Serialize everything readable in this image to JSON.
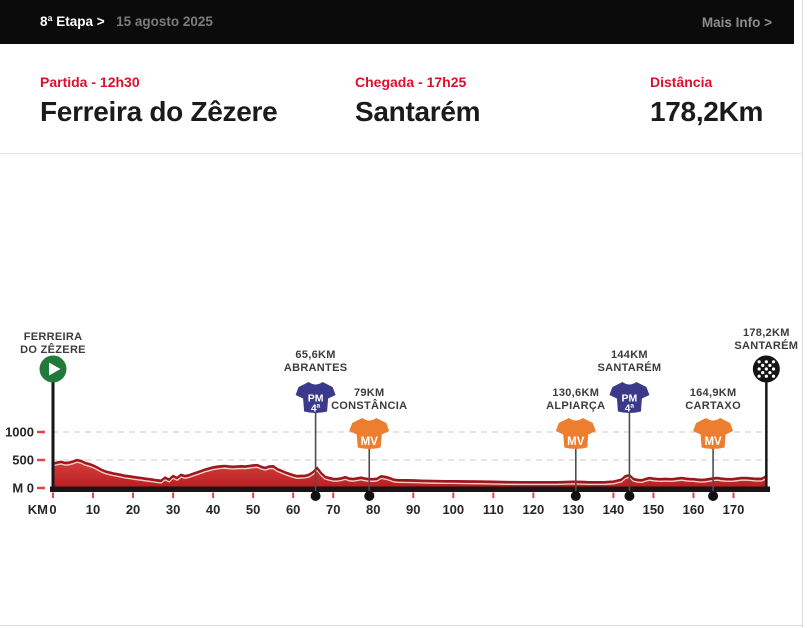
{
  "topbar": {
    "stage_label": "8ª Etapa >",
    "date": "15 agosto 2025",
    "more_info": "Mais Info >"
  },
  "header": {
    "partida": {
      "label": "Partida - 12h30",
      "city": "Ferreira do Zêzere"
    },
    "chegada": {
      "label": "Chegada - 17h25",
      "city": "Santarém"
    },
    "distancia": {
      "label": "Distância",
      "value": "178,2Km"
    }
  },
  "chart_data": {
    "type": "area",
    "xlabel": "KM",
    "ylabel": "M",
    "x_axis_prefix": "KM",
    "xlim": [
      0,
      178.2
    ],
    "ylim": [
      0,
      1250
    ],
    "distance_km": 178.2,
    "x_ticks": [
      0,
      10,
      20,
      30,
      40,
      50,
      60,
      70,
      80,
      90,
      100,
      110,
      120,
      130,
      140,
      150,
      160,
      170
    ],
    "y_ticks": [
      {
        "label": "M 0",
        "value": 0
      },
      {
        "label": "500",
        "value": 500
      },
      {
        "label": "1000",
        "value": 1000
      }
    ],
    "grid": "dashed horizontal at 500 and 1000",
    "profile": [
      [
        0,
        440
      ],
      [
        1,
        455
      ],
      [
        2,
        470
      ],
      [
        3,
        450
      ],
      [
        4,
        455
      ],
      [
        5,
        475
      ],
      [
        6,
        500
      ],
      [
        7,
        485
      ],
      [
        8,
        450
      ],
      [
        9,
        430
      ],
      [
        10,
        405
      ],
      [
        11,
        370
      ],
      [
        12,
        330
      ],
      [
        13,
        300
      ],
      [
        14,
        280
      ],
      [
        15,
        265
      ],
      [
        16,
        250
      ],
      [
        17,
        235
      ],
      [
        18,
        220
      ],
      [
        19,
        210
      ],
      [
        20,
        200
      ],
      [
        21,
        190
      ],
      [
        22,
        180
      ],
      [
        23,
        170
      ],
      [
        24,
        160
      ],
      [
        25,
        150
      ],
      [
        26,
        140
      ],
      [
        27,
        130
      ],
      [
        28,
        185
      ],
      [
        29,
        150
      ],
      [
        30,
        215
      ],
      [
        31,
        180
      ],
      [
        32,
        235
      ],
      [
        33,
        215
      ],
      [
        34,
        230
      ],
      [
        35,
        255
      ],
      [
        36,
        280
      ],
      [
        37,
        305
      ],
      [
        38,
        330
      ],
      [
        39,
        350
      ],
      [
        40,
        370
      ],
      [
        41,
        380
      ],
      [
        42,
        390
      ],
      [
        43,
        395
      ],
      [
        44,
        385
      ],
      [
        45,
        380
      ],
      [
        46,
        385
      ],
      [
        47,
        390
      ],
      [
        48,
        385
      ],
      [
        49,
        395
      ],
      [
        50,
        405
      ],
      [
        51,
        410
      ],
      [
        52,
        380
      ],
      [
        53,
        360
      ],
      [
        54,
        385
      ],
      [
        55,
        390
      ],
      [
        56,
        340
      ],
      [
        57,
        310
      ],
      [
        58,
        280
      ],
      [
        59,
        255
      ],
      [
        60,
        230
      ],
      [
        61,
        215
      ],
      [
        62,
        218
      ],
      [
        63,
        222
      ],
      [
        64,
        240
      ],
      [
        65,
        285
      ],
      [
        66,
        355
      ],
      [
        67,
        265
      ],
      [
        68,
        200
      ],
      [
        69,
        180
      ],
      [
        70,
        165
      ],
      [
        71,
        162
      ],
      [
        72,
        175
      ],
      [
        73,
        195
      ],
      [
        74,
        170
      ],
      [
        75,
        162
      ],
      [
        76,
        175
      ],
      [
        77,
        185
      ],
      [
        78,
        170
      ],
      [
        79,
        162
      ],
      [
        80,
        160
      ],
      [
        81,
        168
      ],
      [
        82,
        210
      ],
      [
        83,
        200
      ],
      [
        84,
        180
      ],
      [
        85,
        152
      ],
      [
        86,
        142
      ],
      [
        88,
        140
      ],
      [
        90,
        138
      ],
      [
        92,
        132
      ],
      [
        95,
        126
      ],
      [
        98,
        124
      ],
      [
        100,
        124
      ],
      [
        103,
        120
      ],
      [
        106,
        117
      ],
      [
        110,
        112
      ],
      [
        114,
        108
      ],
      [
        118,
        106
      ],
      [
        122,
        105
      ],
      [
        126,
        105
      ],
      [
        130,
        115
      ],
      [
        132,
        110
      ],
      [
        134,
        106
      ],
      [
        136,
        106
      ],
      [
        138,
        108
      ],
      [
        140,
        116
      ],
      [
        142,
        150
      ],
      [
        143,
        210
      ],
      [
        144,
        230
      ],
      [
        145,
        162
      ],
      [
        146,
        146
      ],
      [
        147,
        140
      ],
      [
        148,
        160
      ],
      [
        149,
        180
      ],
      [
        150,
        170
      ],
      [
        151,
        162
      ],
      [
        152,
        160
      ],
      [
        153,
        165
      ],
      [
        154,
        160
      ],
      [
        155,
        162
      ],
      [
        156,
        172
      ],
      [
        157,
        180
      ],
      [
        158,
        170
      ],
      [
        159,
        162
      ],
      [
        160,
        160
      ],
      [
        161,
        152
      ],
      [
        162,
        146
      ],
      [
        163,
        152
      ],
      [
        164,
        162
      ],
      [
        165,
        175
      ],
      [
        166,
        180
      ],
      [
        167,
        170
      ],
      [
        168,
        162
      ],
      [
        169,
        160
      ],
      [
        170,
        162
      ],
      [
        171,
        172
      ],
      [
        172,
        180
      ],
      [
        173,
        180
      ],
      [
        174,
        176
      ],
      [
        175,
        170
      ],
      [
        176,
        166
      ],
      [
        177,
        166
      ],
      [
        178,
        200
      ],
      [
        178.2,
        230
      ]
    ],
    "markers": [
      {
        "km": 0,
        "type": "start",
        "label_lines": [
          "FERREIRA",
          "DO ZÊZERE"
        ]
      },
      {
        "km": 65.6,
        "type": "pm",
        "km_label": "65,6KM",
        "name": "ABRANTES",
        "label_lines": [
          "65,6KM",
          "ABRANTES"
        ],
        "jersey_lines": [
          "PM",
          "4ª"
        ]
      },
      {
        "km": 79,
        "type": "mv",
        "km_label": "79KM",
        "name": "CONSTÂNCIA",
        "label_lines": [
          "79KM",
          "CONSTÂNCIA"
        ],
        "jersey_lines": [
          "MV"
        ]
      },
      {
        "km": 130.6,
        "type": "mv",
        "km_label": "130,6KM",
        "name": "ALPIARÇA",
        "label_lines": [
          "130,6KM",
          "ALPIARÇA"
        ],
        "jersey_lines": [
          "MV"
        ]
      },
      {
        "km": 144,
        "type": "pm",
        "km_label": "144KM",
        "name": "SANTARÉM",
        "label_lines": [
          "144KM",
          "SANTARÉM"
        ],
        "jersey_lines": [
          "PM",
          "4ª"
        ]
      },
      {
        "km": 164.9,
        "type": "mv",
        "km_label": "164,9KM",
        "name": "CARTAXO",
        "label_lines": [
          "164,9KM",
          "CARTAXO"
        ],
        "jersey_lines": [
          "MV"
        ]
      },
      {
        "km": 178.2,
        "type": "finish",
        "km_label": "178,2KM",
        "name": "SANTARÉM",
        "label_lines": [
          "178,2KM",
          "SANTARÉM"
        ]
      }
    ],
    "colors": {
      "profile_fill_top": "#d4403c",
      "profile_fill_bottom": "#b91d22",
      "profile_stroke": "#9a181d",
      "highlight": "#f6ddd2",
      "baseline": "#1c1414",
      "pm_blue": "#3b3a8a",
      "mv_orange": "#ee7e2f",
      "start_green": "#21793a",
      "finish_black": "#141414",
      "tick_red": "#e2463e",
      "grid": "#cbcbcb",
      "pole": "#4d4d4d"
    }
  },
  "colors": {
    "accent_red": "#dc0f2d",
    "topbar_bg": "#0b0b0b"
  }
}
